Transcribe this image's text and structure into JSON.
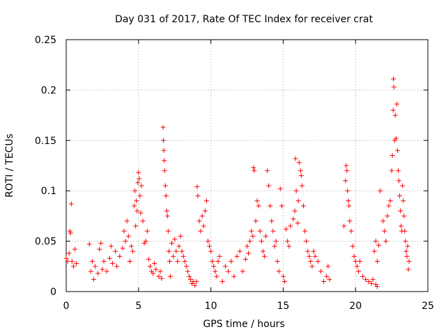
{
  "chart_data": {
    "type": "scatter",
    "title": "Day 031 of 2017, Rate Of TEC Index for receiver crat",
    "xlabel": "GPS time / hours",
    "ylabel": "ROTI / TECUs",
    "xlim": [
      0,
      25
    ],
    "ylim": [
      0,
      0.25
    ],
    "x_ticks": [
      0,
      5,
      10,
      15,
      20,
      25
    ],
    "x_tick_labels": [
      "0",
      "5",
      "10",
      "15",
      "20",
      "25"
    ],
    "y_ticks": [
      0,
      0.05,
      0.1,
      0.15,
      0.2,
      0.25
    ],
    "y_tick_labels": [
      "0",
      "0.05",
      "0.1",
      "0.15",
      "0.2",
      "0.25"
    ],
    "grid": true,
    "marker": "+",
    "color": "#ff0000",
    "points": [
      [
        0.0,
        0.033
      ],
      [
        0.1,
        0.03
      ],
      [
        0.2,
        0.038
      ],
      [
        0.25,
        0.06
      ],
      [
        0.3,
        0.058
      ],
      [
        0.35,
        0.087
      ],
      [
        0.4,
        0.03
      ],
      [
        0.5,
        0.025
      ],
      [
        0.6,
        0.042
      ],
      [
        0.7,
        0.028
      ],
      [
        1.6,
        0.047
      ],
      [
        1.7,
        0.02
      ],
      [
        1.8,
        0.03
      ],
      [
        1.9,
        0.012
      ],
      [
        2.0,
        0.025
      ],
      [
        2.2,
        0.018
      ],
      [
        2.3,
        0.042
      ],
      [
        2.4,
        0.048
      ],
      [
        2.5,
        0.022
      ],
      [
        2.6,
        0.03
      ],
      [
        2.8,
        0.02
      ],
      [
        3.0,
        0.033
      ],
      [
        3.1,
        0.045
      ],
      [
        3.2,
        0.028
      ],
      [
        3.4,
        0.04
      ],
      [
        3.5,
        0.025
      ],
      [
        3.7,
        0.035
      ],
      [
        3.9,
        0.043
      ],
      [
        4.0,
        0.06
      ],
      [
        4.1,
        0.05
      ],
      [
        4.2,
        0.07
      ],
      [
        4.3,
        0.055
      ],
      [
        4.4,
        0.03
      ],
      [
        4.5,
        0.045
      ],
      [
        4.6,
        0.04
      ],
      [
        4.7,
        0.085
      ],
      [
        4.75,
        0.1
      ],
      [
        4.8,
        0.065
      ],
      [
        4.85,
        0.09
      ],
      [
        4.9,
        0.08
      ],
      [
        4.95,
        0.108
      ],
      [
        5.0,
        0.118
      ],
      [
        5.05,
        0.112
      ],
      [
        5.1,
        0.095
      ],
      [
        5.15,
        0.078
      ],
      [
        5.2,
        0.105
      ],
      [
        5.3,
        0.07
      ],
      [
        5.4,
        0.048
      ],
      [
        5.5,
        0.05
      ],
      [
        5.6,
        0.06
      ],
      [
        5.7,
        0.032
      ],
      [
        5.8,
        0.025
      ],
      [
        5.9,
        0.02
      ],
      [
        6.0,
        0.018
      ],
      [
        6.1,
        0.028
      ],
      [
        6.2,
        0.022
      ],
      [
        6.4,
        0.015
      ],
      [
        6.5,
        0.02
      ],
      [
        6.6,
        0.013
      ],
      [
        6.7,
        0.163
      ],
      [
        6.72,
        0.15
      ],
      [
        6.75,
        0.14
      ],
      [
        6.78,
        0.13
      ],
      [
        6.8,
        0.12
      ],
      [
        6.85,
        0.105
      ],
      [
        6.9,
        0.095
      ],
      [
        6.95,
        0.08
      ],
      [
        7.0,
        0.075
      ],
      [
        7.05,
        0.06
      ],
      [
        7.1,
        0.04
      ],
      [
        7.15,
        0.03
      ],
      [
        7.2,
        0.015
      ],
      [
        7.3,
        0.048
      ],
      [
        7.4,
        0.035
      ],
      [
        7.5,
        0.052
      ],
      [
        7.6,
        0.04
      ],
      [
        7.7,
        0.03
      ],
      [
        7.8,
        0.045
      ],
      [
        7.9,
        0.055
      ],
      [
        8.0,
        0.04
      ],
      [
        8.1,
        0.035
      ],
      [
        8.2,
        0.03
      ],
      [
        8.3,
        0.025
      ],
      [
        8.4,
        0.02
      ],
      [
        8.5,
        0.015
      ],
      [
        8.6,
        0.012
      ],
      [
        8.7,
        0.008
      ],
      [
        8.8,
        0.01
      ],
      [
        8.9,
        0.006
      ],
      [
        9.0,
        0.01
      ],
      [
        9.05,
        0.104
      ],
      [
        9.1,
        0.095
      ],
      [
        9.2,
        0.07
      ],
      [
        9.3,
        0.06
      ],
      [
        9.4,
        0.075
      ],
      [
        9.5,
        0.065
      ],
      [
        9.6,
        0.08
      ],
      [
        9.7,
        0.09
      ],
      [
        9.8,
        0.05
      ],
      [
        9.9,
        0.045
      ],
      [
        10.0,
        0.04
      ],
      [
        10.1,
        0.03
      ],
      [
        10.2,
        0.025
      ],
      [
        10.3,
        0.02
      ],
      [
        10.4,
        0.015
      ],
      [
        10.5,
        0.03
      ],
      [
        10.6,
        0.035
      ],
      [
        10.8,
        0.01
      ],
      [
        11.0,
        0.025
      ],
      [
        11.2,
        0.02
      ],
      [
        11.4,
        0.03
      ],
      [
        11.6,
        0.015
      ],
      [
        11.8,
        0.035
      ],
      [
        12.0,
        0.04
      ],
      [
        12.2,
        0.02
      ],
      [
        12.4,
        0.032
      ],
      [
        12.5,
        0.045
      ],
      [
        12.6,
        0.038
      ],
      [
        12.7,
        0.05
      ],
      [
        12.8,
        0.06
      ],
      [
        12.9,
        0.055
      ],
      [
        12.95,
        0.123
      ],
      [
        13.0,
        0.12
      ],
      [
        13.1,
        0.07
      ],
      [
        13.2,
        0.09
      ],
      [
        13.3,
        0.085
      ],
      [
        13.4,
        0.06
      ],
      [
        13.5,
        0.05
      ],
      [
        13.6,
        0.04
      ],
      [
        13.7,
        0.035
      ],
      [
        13.8,
        0.055
      ],
      [
        13.9,
        0.12
      ],
      [
        14.0,
        0.105
      ],
      [
        14.1,
        0.085
      ],
      [
        14.2,
        0.07
      ],
      [
        14.3,
        0.06
      ],
      [
        14.4,
        0.045
      ],
      [
        14.5,
        0.05
      ],
      [
        14.6,
        0.03
      ],
      [
        14.7,
        0.02
      ],
      [
        14.8,
        0.102
      ],
      [
        14.9,
        0.085
      ],
      [
        15.0,
        0.015
      ],
      [
        15.1,
        0.01
      ],
      [
        15.2,
        0.062
      ],
      [
        15.3,
        0.05
      ],
      [
        15.4,
        0.045
      ],
      [
        15.5,
        0.065
      ],
      [
        15.7,
        0.072
      ],
      [
        15.8,
        0.08
      ],
      [
        15.85,
        0.132
      ],
      [
        15.9,
        0.1
      ],
      [
        16.0,
        0.068
      ],
      [
        16.05,
        0.09
      ],
      [
        16.1,
        0.128
      ],
      [
        16.2,
        0.12
      ],
      [
        16.25,
        0.115
      ],
      [
        16.3,
        0.105
      ],
      [
        16.4,
        0.085
      ],
      [
        16.5,
        0.06
      ],
      [
        16.6,
        0.05
      ],
      [
        16.7,
        0.04
      ],
      [
        16.8,
        0.035
      ],
      [
        16.9,
        0.03
      ],
      [
        17.0,
        0.025
      ],
      [
        17.1,
        0.04
      ],
      [
        17.2,
        0.035
      ],
      [
        17.4,
        0.03
      ],
      [
        17.6,
        0.02
      ],
      [
        17.8,
        0.01
      ],
      [
        18.0,
        0.015
      ],
      [
        18.1,
        0.025
      ],
      [
        18.2,
        0.012
      ],
      [
        19.2,
        0.065
      ],
      [
        19.3,
        0.11
      ],
      [
        19.35,
        0.125
      ],
      [
        19.4,
        0.12
      ],
      [
        19.45,
        0.1
      ],
      [
        19.5,
        0.09
      ],
      [
        19.55,
        0.085
      ],
      [
        19.6,
        0.07
      ],
      [
        19.7,
        0.06
      ],
      [
        19.8,
        0.045
      ],
      [
        19.9,
        0.035
      ],
      [
        20.0,
        0.03
      ],
      [
        20.1,
        0.025
      ],
      [
        20.2,
        0.02
      ],
      [
        20.3,
        0.03
      ],
      [
        20.5,
        0.015
      ],
      [
        20.7,
        0.012
      ],
      [
        20.9,
        0.01
      ],
      [
        21.1,
        0.008
      ],
      [
        21.2,
        0.012
      ],
      [
        21.4,
        0.007
      ],
      [
        21.5,
        0.005
      ],
      [
        21.3,
        0.04
      ],
      [
        21.4,
        0.05
      ],
      [
        21.5,
        0.03
      ],
      [
        21.6,
        0.046
      ],
      [
        21.7,
        0.1
      ],
      [
        21.9,
        0.07
      ],
      [
        22.0,
        0.06
      ],
      [
        22.1,
        0.05
      ],
      [
        22.2,
        0.075
      ],
      [
        22.3,
        0.085
      ],
      [
        22.4,
        0.09
      ],
      [
        22.5,
        0.12
      ],
      [
        22.55,
        0.135
      ],
      [
        22.6,
        0.18
      ],
      [
        22.62,
        0.211
      ],
      [
        22.65,
        0.203
      ],
      [
        22.7,
        0.15
      ],
      [
        22.75,
        0.175
      ],
      [
        22.8,
        0.152
      ],
      [
        22.85,
        0.186
      ],
      [
        22.9,
        0.14
      ],
      [
        22.95,
        0.12
      ],
      [
        23.0,
        0.11
      ],
      [
        23.05,
        0.095
      ],
      [
        23.1,
        0.08
      ],
      [
        23.15,
        0.065
      ],
      [
        23.2,
        0.06
      ],
      [
        23.25,
        0.105
      ],
      [
        23.3,
        0.09
      ],
      [
        23.35,
        0.075
      ],
      [
        23.4,
        0.06
      ],
      [
        23.45,
        0.05
      ],
      [
        23.5,
        0.04
      ],
      [
        23.55,
        0.035
      ],
      [
        23.6,
        0.045
      ],
      [
        23.65,
        0.022
      ],
      [
        23.7,
        0.03
      ]
    ]
  }
}
